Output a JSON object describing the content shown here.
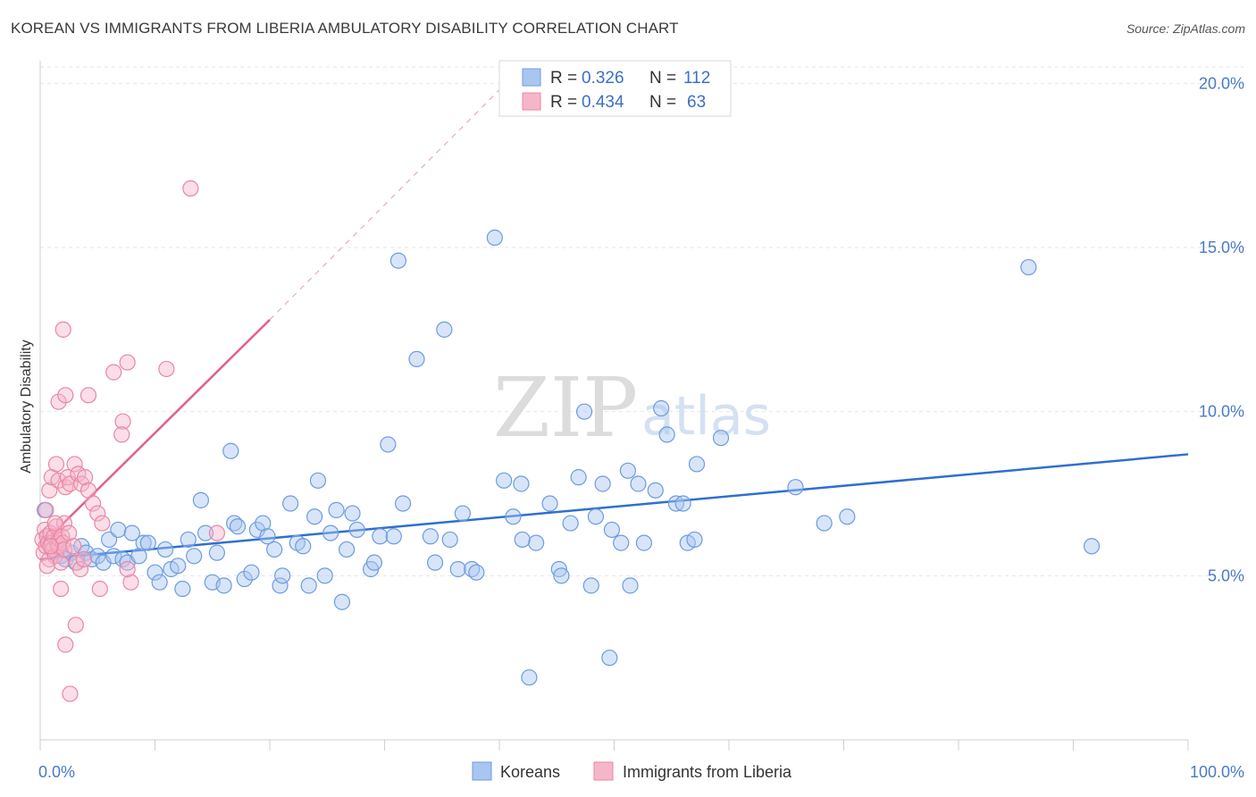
{
  "title": "KOREAN VS IMMIGRANTS FROM LIBERIA AMBULATORY DISABILITY CORRELATION CHART",
  "source": "Source: ZipAtlas.com",
  "watermark": {
    "zip": "ZIP",
    "atlas": "atlas"
  },
  "legend": {
    "rows": [
      {
        "r_label": "R =",
        "r_value": "0.326",
        "n_label": "N =",
        "n_value": "112",
        "color": "#a9c6f0"
      },
      {
        "r_label": "R =",
        "r_value": "0.434",
        "n_label": "N =",
        "n_value": "63",
        "color": "#f6b6c9"
      }
    ]
  },
  "bottom_legend": [
    {
      "label": "Koreans",
      "color": "#a9c6f0"
    },
    {
      "label": "Immigrants from Liberia",
      "color": "#f6b6c9"
    }
  ],
  "chart_data": {
    "type": "scatter",
    "xlabel": "",
    "ylabel": "Ambulatory Disability",
    "xlim": [
      0,
      100
    ],
    "ylim": [
      0,
      20.5
    ],
    "x_tick_labels": [
      "0.0%",
      "100.0%"
    ],
    "y_ticks": [
      5,
      10,
      15,
      20
    ],
    "y_tick_labels": [
      "5.0%",
      "10.0%",
      "15.0%",
      "20.0%"
    ],
    "grid": true,
    "series": [
      {
        "name": "Koreans",
        "color": "#a9c6f0",
        "stroke": "#6d9be0",
        "trend": {
          "x0": 0,
          "y0": 5.5,
          "x1": 100,
          "y1": 8.7,
          "color": "#2f6fd0"
        },
        "points": [
          [
            0.4,
            7.0
          ],
          [
            0.6,
            6.2
          ],
          [
            1.0,
            5.8
          ],
          [
            1.3,
            6.0
          ],
          [
            1.8,
            5.6
          ],
          [
            2.2,
            5.5
          ],
          [
            2.7,
            5.7
          ],
          [
            3.1,
            5.4
          ],
          [
            3.6,
            5.9
          ],
          [
            4.0,
            5.7
          ],
          [
            4.5,
            5.5
          ],
          [
            5.0,
            5.6
          ],
          [
            5.5,
            5.4
          ],
          [
            6.0,
            6.1
          ],
          [
            6.4,
            5.6
          ],
          [
            6.8,
            6.4
          ],
          [
            7.2,
            5.5
          ],
          [
            7.6,
            5.4
          ],
          [
            8.0,
            6.3
          ],
          [
            8.6,
            5.6
          ],
          [
            9.0,
            6.0
          ],
          [
            9.4,
            6.0
          ],
          [
            10.0,
            5.1
          ],
          [
            10.4,
            4.8
          ],
          [
            10.9,
            5.8
          ],
          [
            11.4,
            5.2
          ],
          [
            12.0,
            5.3
          ],
          [
            12.4,
            4.6
          ],
          [
            12.9,
            6.1
          ],
          [
            13.4,
            5.6
          ],
          [
            14.0,
            7.3
          ],
          [
            14.4,
            6.3
          ],
          [
            15.0,
            4.8
          ],
          [
            15.4,
            5.7
          ],
          [
            16.0,
            4.7
          ],
          [
            16.6,
            8.8
          ],
          [
            16.9,
            6.6
          ],
          [
            17.2,
            6.5
          ],
          [
            17.8,
            4.9
          ],
          [
            18.4,
            5.1
          ],
          [
            18.9,
            6.4
          ],
          [
            19.4,
            6.6
          ],
          [
            19.8,
            6.2
          ],
          [
            20.4,
            5.8
          ],
          [
            20.9,
            4.7
          ],
          [
            21.1,
            5.0
          ],
          [
            21.8,
            7.2
          ],
          [
            22.4,
            6.0
          ],
          [
            22.9,
            5.9
          ],
          [
            23.4,
            4.7
          ],
          [
            23.9,
            6.8
          ],
          [
            24.2,
            7.9
          ],
          [
            24.8,
            5.0
          ],
          [
            25.3,
            6.3
          ],
          [
            25.8,
            7.0
          ],
          [
            26.3,
            4.2
          ],
          [
            26.7,
            5.8
          ],
          [
            27.2,
            6.9
          ],
          [
            27.6,
            6.4
          ],
          [
            28.8,
            5.2
          ],
          [
            29.1,
            5.4
          ],
          [
            29.6,
            6.2
          ],
          [
            30.3,
            9.0
          ],
          [
            30.8,
            6.2
          ],
          [
            31.6,
            7.2
          ],
          [
            31.2,
            14.6
          ],
          [
            32.8,
            11.6
          ],
          [
            34.4,
            5.4
          ],
          [
            35.2,
            12.5
          ],
          [
            35.7,
            6.1
          ],
          [
            36.4,
            5.2
          ],
          [
            36.8,
            6.9
          ],
          [
            37.6,
            5.2
          ],
          [
            38.0,
            5.1
          ],
          [
            39.6,
            15.3
          ],
          [
            40.4,
            7.9
          ],
          [
            41.2,
            6.8
          ],
          [
            41.9,
            7.8
          ],
          [
            42.6,
            1.9
          ],
          [
            43.2,
            6.0
          ],
          [
            44.4,
            7.2
          ],
          [
            45.2,
            5.2
          ],
          [
            45.4,
            5.0
          ],
          [
            46.2,
            6.6
          ],
          [
            46.9,
            8.0
          ],
          [
            47.4,
            10.0
          ],
          [
            48.0,
            4.7
          ],
          [
            48.4,
            6.8
          ],
          [
            49.0,
            7.8
          ],
          [
            49.8,
            6.4
          ],
          [
            50.6,
            6.0
          ],
          [
            51.2,
            8.2
          ],
          [
            51.4,
            4.7
          ],
          [
            52.1,
            7.8
          ],
          [
            52.6,
            6.0
          ],
          [
            53.6,
            7.6
          ],
          [
            54.1,
            10.1
          ],
          [
            54.6,
            9.3
          ],
          [
            55.4,
            7.2
          ],
          [
            56.0,
            7.2
          ],
          [
            56.4,
            6.0
          ],
          [
            57.2,
            8.4
          ],
          [
            59.3,
            9.2
          ],
          [
            65.8,
            7.7
          ],
          [
            68.3,
            6.6
          ],
          [
            70.3,
            6.8
          ],
          [
            86.1,
            14.4
          ],
          [
            91.6,
            5.9
          ],
          [
            57.0,
            6.1
          ],
          [
            49.6,
            2.5
          ],
          [
            34.0,
            6.2
          ],
          [
            42.0,
            6.1
          ]
        ]
      },
      {
        "name": "Immigrants from Liberia",
        "color": "#f6b6c9",
        "stroke": "#e887a5",
        "trend": {
          "x0": 0,
          "y0": 5.9,
          "x1": 20,
          "y1": 12.8,
          "color": "#e0608e"
        },
        "trend_dashed": {
          "x0": 20,
          "y0": 12.8,
          "x1": 40,
          "y1": 19.8
        },
        "points": [
          [
            0.2,
            6.1
          ],
          [
            0.3,
            5.7
          ],
          [
            0.4,
            6.4
          ],
          [
            0.5,
            5.9
          ],
          [
            0.6,
            6.2
          ],
          [
            0.7,
            6.0
          ],
          [
            0.8,
            5.5
          ],
          [
            0.9,
            6.3
          ],
          [
            1.0,
            6.0
          ],
          [
            1.1,
            5.8
          ],
          [
            1.2,
            6.2
          ],
          [
            1.3,
            5.6
          ],
          [
            1.4,
            6.5
          ],
          [
            1.5,
            6.0
          ],
          [
            1.6,
            5.9
          ],
          [
            1.7,
            6.1
          ],
          [
            1.8,
            5.4
          ],
          [
            1.9,
            6.2
          ],
          [
            2.0,
            6.0
          ],
          [
            2.1,
            5.8
          ],
          [
            0.5,
            7.0
          ],
          [
            0.8,
            7.6
          ],
          [
            1.0,
            8.0
          ],
          [
            1.4,
            8.4
          ],
          [
            1.6,
            7.9
          ],
          [
            2.2,
            7.7
          ],
          [
            2.4,
            8.0
          ],
          [
            2.6,
            7.8
          ],
          [
            3.0,
            8.4
          ],
          [
            3.3,
            8.1
          ],
          [
            3.6,
            7.8
          ],
          [
            3.9,
            8.0
          ],
          [
            4.2,
            7.6
          ],
          [
            4.6,
            7.2
          ],
          [
            5.0,
            6.9
          ],
          [
            5.4,
            6.6
          ],
          [
            2.1,
            6.6
          ],
          [
            2.5,
            6.3
          ],
          [
            2.9,
            5.9
          ],
          [
            3.2,
            5.4
          ],
          [
            3.5,
            5.2
          ],
          [
            3.8,
            5.5
          ],
          [
            1.6,
            10.3
          ],
          [
            2.2,
            10.5
          ],
          [
            4.2,
            10.5
          ],
          [
            6.4,
            11.2
          ],
          [
            7.6,
            11.5
          ],
          [
            11.0,
            11.3
          ],
          [
            7.2,
            9.7
          ],
          [
            7.1,
            9.3
          ],
          [
            2.0,
            12.5
          ],
          [
            13.1,
            16.8
          ],
          [
            1.8,
            4.6
          ],
          [
            5.2,
            4.6
          ],
          [
            7.9,
            4.8
          ],
          [
            7.6,
            5.2
          ],
          [
            3.1,
            3.5
          ],
          [
            2.2,
            2.9
          ],
          [
            2.6,
            1.4
          ],
          [
            0.6,
            5.3
          ],
          [
            15.4,
            6.3
          ],
          [
            0.9,
            5.9
          ],
          [
            1.3,
            6.6
          ]
        ]
      }
    ]
  }
}
